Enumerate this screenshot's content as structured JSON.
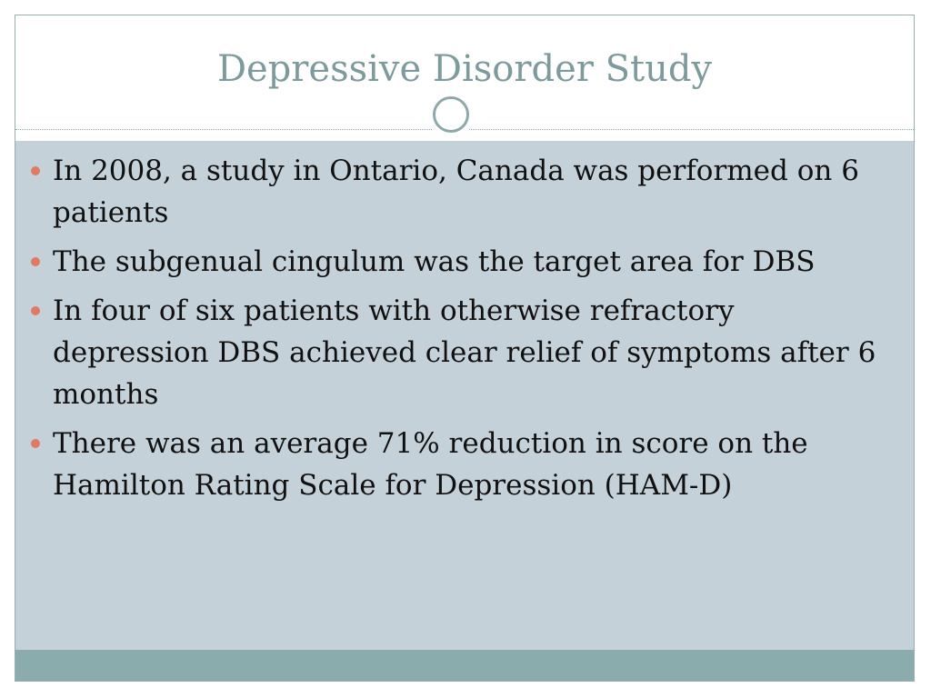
{
  "slide": {
    "title": "Depressive Disorder Study",
    "bullets": [
      {
        "text": "In 2008, a study in Ontario, Canada was performed on 6 patients"
      },
      {
        "text": "The subgenual cingulum was the target area for DBS"
      },
      {
        "text": "In four of six patients with otherwise refractory depression DBS achieved clear relief of symptoms after 6 months"
      },
      {
        "text": "There was an average 71% reduction in score on the Hamilton Rating Scale for Depression (HAM-D)"
      }
    ]
  },
  "colors": {
    "title": "#7d9a9c",
    "content_background": "#c5d1d8",
    "footer_band": "#8aacad",
    "bullet_marker": "#e07a62",
    "body_text": "#111111"
  }
}
